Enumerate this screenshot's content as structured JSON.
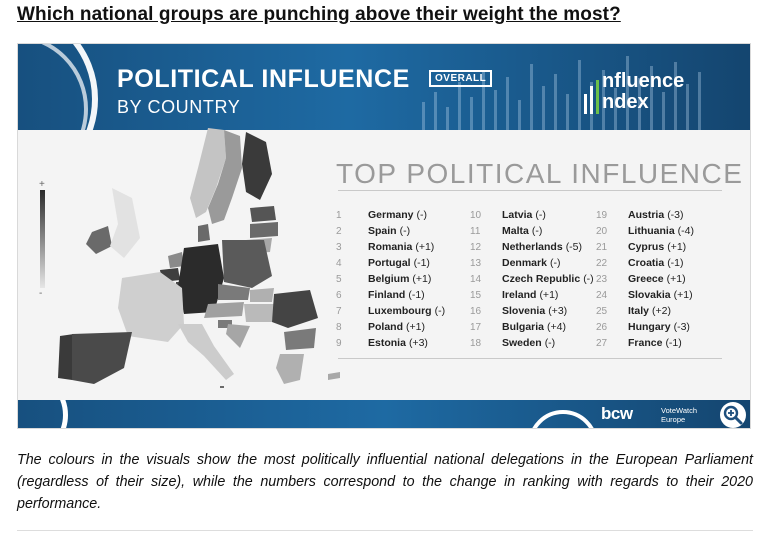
{
  "page": {
    "heading": "Which national groups are punching above their weight the most?",
    "caption": "The colours in the visuals show the most politically influential national delegations in the European Parliament (regardless of their size), while the numbers correspond to the change in ranking with regards to their 2020 performance."
  },
  "infographic": {
    "banner_title": "POLITICAL INFLUENCE",
    "badge": "OVERALL",
    "banner_subtitle": "BY COUNTRY",
    "logo_line1": "nfluence",
    "logo_line2": "ndex",
    "ranking_title": "TOP POLITICAL INFLUENCE",
    "footer_logo": "bcw",
    "footer_partner_line1": "VoteWatch",
    "footer_partner_line2": "Europe",
    "scale_plus": "+",
    "scale_minus": "-"
  },
  "ranking": {
    "columns": [
      [
        {
          "rank": "1",
          "country": "Germany",
          "change": "(-)"
        },
        {
          "rank": "2",
          "country": "Spain",
          "change": "(-)"
        },
        {
          "rank": "3",
          "country": "Romania",
          "change": "(+1)"
        },
        {
          "rank": "4",
          "country": "Portugal",
          "change": "(-1)"
        },
        {
          "rank": "5",
          "country": "Belgium",
          "change": "(+1)"
        },
        {
          "rank": "6",
          "country": "Finland",
          "change": "(-1)"
        },
        {
          "rank": "7",
          "country": "Luxembourg",
          "change": "(-)"
        },
        {
          "rank": "8",
          "country": "Poland",
          "change": "(+1)"
        },
        {
          "rank": "9",
          "country": "Estonia",
          "change": "(+3)"
        }
      ],
      [
        {
          "rank": "10",
          "country": "Latvia",
          "change": "(-)"
        },
        {
          "rank": "11",
          "country": "Malta",
          "change": "(-)"
        },
        {
          "rank": "12",
          "country": "Netherlands",
          "change": "(-5)"
        },
        {
          "rank": "13",
          "country": "Denmark",
          "change": "(-)"
        },
        {
          "rank": "14",
          "country": "Czech Republic",
          "change": "(-)"
        },
        {
          "rank": "15",
          "country": "Ireland",
          "change": "(+1)"
        },
        {
          "rank": "16",
          "country": "Slovenia",
          "change": "(+3)"
        },
        {
          "rank": "17",
          "country": "Bulgaria",
          "change": "(+4)"
        },
        {
          "rank": "18",
          "country": "Sweden",
          "change": "(-)"
        }
      ],
      [
        {
          "rank": "19",
          "country": "Austria",
          "change": "(-3)"
        },
        {
          "rank": "20",
          "country": "Lithuania",
          "change": "(-4)"
        },
        {
          "rank": "21",
          "country": "Cyprus",
          "change": "(+1)"
        },
        {
          "rank": "22",
          "country": "Croatia",
          "change": "(-1)"
        },
        {
          "rank": "23",
          "country": "Greece",
          "change": "(+1)"
        },
        {
          "rank": "24",
          "country": "Slovakia",
          "change": "(+1)"
        },
        {
          "rank": "25",
          "country": "Italy",
          "change": "(+2)"
        },
        {
          "rank": "26",
          "country": "Hungary",
          "change": "(-3)"
        },
        {
          "rank": "27",
          "country": "France",
          "change": "(-1)"
        }
      ]
    ]
  },
  "colors": {
    "banner": "#1e6aa3",
    "map_darkest": "#2b2b2b",
    "map_lightest": "#d6d6d6",
    "rank_number": "#9a9a9a"
  },
  "icons": {
    "zoom": "magnify-plus-icon",
    "logo_bars": "bar-icon"
  }
}
